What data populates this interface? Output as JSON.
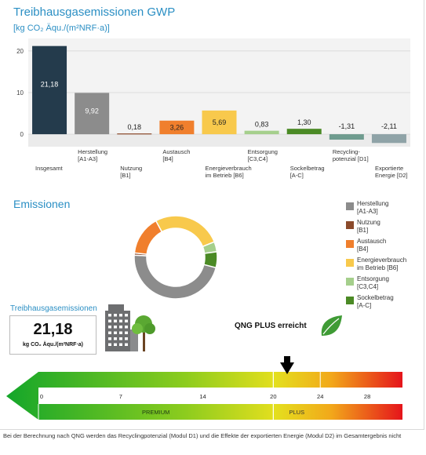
{
  "title": "Treibhausgasemissionen GWP",
  "unit": "[kg CO₂ Äqu./(m²NRF·a)]",
  "chart_data": {
    "type": "bar",
    "categories": [
      "Insgesamt",
      "Herstellung\n[A1-A3]",
      "Nutzung\n[B1]",
      "Austausch\n[B4]",
      "Energieverbrauch\nim Betrieb [B6]",
      "Entsorgung\n[C3,C4]",
      "Sockelbetrag\n[A-C]",
      "Recycling-\npotenzial [D1]",
      "Exportierte\nEnergie [D2]"
    ],
    "values": [
      21.18,
      9.92,
      0.18,
      3.26,
      5.69,
      0.83,
      1.3,
      -1.31,
      -2.11
    ],
    "value_labels": [
      "21,18",
      "9,92",
      "0,18",
      "3,26",
      "5,69",
      "0,83",
      "1,30",
      "-1,31",
      "-2,11"
    ],
    "colors": [
      "#243b4c",
      "#8c8c8c",
      "#8b4a2b",
      "#f07f2d",
      "#f8c94c",
      "#a5cf8c",
      "#4b8a25",
      "#6f9c8f",
      "#8fa3a7"
    ],
    "yticks": [
      "20",
      "10",
      "0"
    ],
    "ylim": [
      -3,
      23
    ]
  },
  "emissions": {
    "title": "Emissionen",
    "donut": [
      {
        "label": "Herstellung\n[A1-A3]",
        "value": 9.92,
        "color": "#8c8c8c"
      },
      {
        "label": "Nutzung\n[B1]",
        "value": 0.18,
        "color": "#8b4a2b"
      },
      {
        "label": "Austausch\n[B4]",
        "value": 3.26,
        "color": "#f07f2d"
      },
      {
        "label": "Energieverbrauch\nim Betrieb [B6]",
        "value": 5.69,
        "color": "#f8c94c"
      },
      {
        "label": "Entsorgung\n[C3,C4]",
        "value": 0.83,
        "color": "#a5cf8c"
      },
      {
        "label": "Sockelbetrag\n[A-C]",
        "value": 1.3,
        "color": "#4b8a25"
      }
    ]
  },
  "ghg": {
    "label": "Treibhausgasemissionen",
    "value": "21,18",
    "unit": "kg CO₂ Äqu./(m²NRF·a)"
  },
  "qng": {
    "status": "QNG PLUS erreicht"
  },
  "scale": {
    "ticks": [
      "0",
      "7",
      "14",
      "20",
      "24",
      "28"
    ],
    "tick_values": [
      0,
      7,
      14,
      20,
      24,
      28
    ],
    "max": 31,
    "marker": 21.18,
    "premium": "PREMIUM",
    "plus": "PLUS"
  },
  "footer": "Bei der Berechnung nach QNG werden das Recyclingpotenzial (Modul D1) und die Effekte der exportierten Energie (Modul D2) im Gesamtergebnis nicht"
}
